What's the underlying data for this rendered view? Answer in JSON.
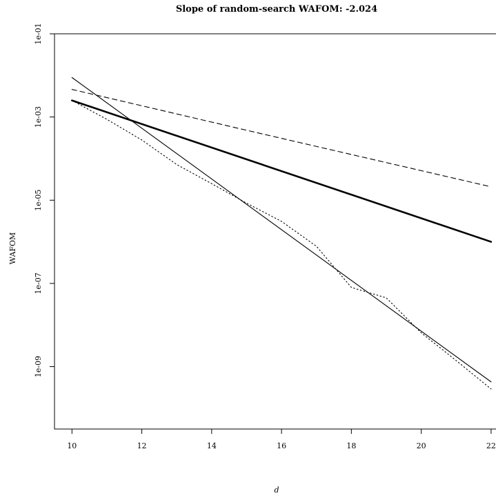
{
  "chart_data": {
    "type": "line",
    "title": "Slope of random-search WAFOM: -2.024",
    "xlabel": "d",
    "ylabel": "WAFOM",
    "x_scale": "linear",
    "y_scale": "log",
    "xlim": [
      9.5,
      22.2
    ],
    "ylim_log10": [
      -10.5,
      -1.0
    ],
    "x_ticks": [
      10,
      12,
      14,
      16,
      18,
      20,
      22
    ],
    "x_tick_labels": [
      "10",
      "12",
      "14",
      "16",
      "18",
      "20",
      "22"
    ],
    "y_ticks_log10": [
      -1,
      -3,
      -5,
      -7,
      -9
    ],
    "y_tick_labels": [
      "1e-01",
      "1e-03",
      "1e-05",
      "1e-07",
      "1e-09"
    ],
    "grid": false,
    "legend": "none",
    "series": [
      {
        "style": "dashed",
        "color": "#000000",
        "x": [
          10,
          15,
          22
        ],
        "y": [
          0.0046,
          0.00048,
          2.1e-05
        ]
      },
      {
        "style": "solid-thick",
        "color": "#000000",
        "x": [
          10,
          22
        ],
        "y": [
          0.0025,
          1e-06
        ]
      },
      {
        "style": "solid-thin",
        "color": "#000000",
        "x": [
          10,
          22
        ],
        "y": [
          0.0089,
          4.3e-10
        ]
      },
      {
        "style": "dotted",
        "color": "#000000",
        "x": [
          10,
          11,
          12,
          13,
          14,
          15,
          16,
          17,
          18,
          19,
          20,
          21,
          22
        ],
        "y": [
          0.0025,
          0.00088,
          0.00028,
          7.2e-05,
          2.5e-05,
          8.5e-06,
          3.1e-06,
          7.8e-07,
          8e-08,
          4.5e-08,
          6.5e-09,
          1.4e-09,
          2.9e-10
        ]
      }
    ]
  }
}
